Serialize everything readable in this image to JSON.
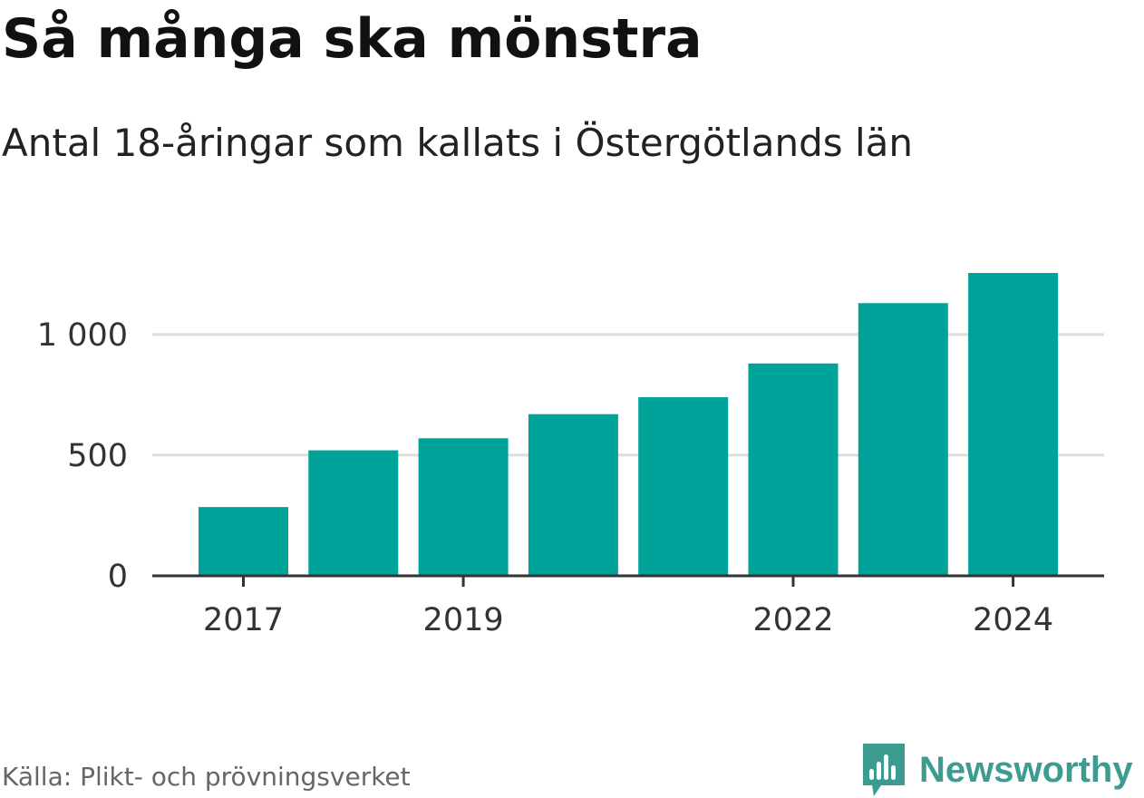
{
  "title": "Så många ska mönstra",
  "subtitle": "Antal 18-åringar som kallats i Östergötlands län",
  "source": "Källa: Plikt- och prövningsverket",
  "brand": {
    "name": "Newsworthy",
    "icon": "newsworthy-logo-icon",
    "color": "#3d9c92"
  },
  "colors": {
    "bar": "#00a39a",
    "grid": "#dddddd",
    "axis": "#333333"
  },
  "chart_data": {
    "type": "bar",
    "title": "Så många ska mönstra",
    "subtitle": "Antal 18-åringar som kallats i Östergötlands län",
    "xlabel": "",
    "ylabel": "",
    "categories": [
      "2017",
      "2018",
      "2019",
      "2020",
      "2021",
      "2022",
      "2023",
      "2024"
    ],
    "values": [
      285,
      520,
      570,
      670,
      740,
      880,
      1130,
      1255
    ],
    "ylim": [
      0,
      1255
    ],
    "yticks": [
      {
        "value": 0,
        "label": "0"
      },
      {
        "value": 500,
        "label": "500"
      },
      {
        "value": 1000,
        "label": "1 000"
      }
    ],
    "xtick_labels": [
      "2017",
      "2019",
      "2022",
      "2024"
    ],
    "grid": true,
    "legend": "none"
  }
}
